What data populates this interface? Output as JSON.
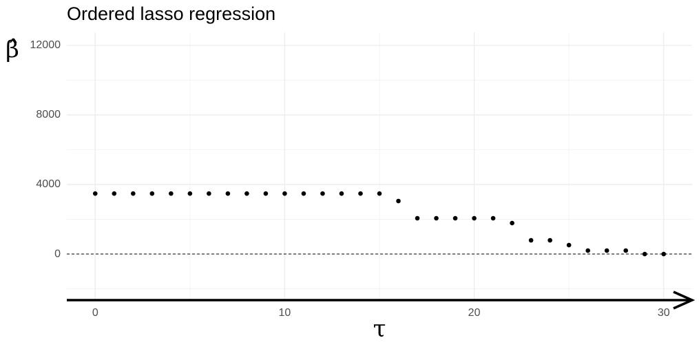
{
  "chart_data": {
    "type": "scatter",
    "title": "Ordered lasso regression",
    "x_label": "τ",
    "y_label": "β̂",
    "x": [
      0,
      1,
      2,
      3,
      4,
      5,
      6,
      7,
      8,
      9,
      10,
      11,
      12,
      13,
      14,
      15,
      16,
      17,
      18,
      19,
      20,
      21,
      22,
      23,
      24,
      25,
      26,
      27,
      28,
      29,
      30
    ],
    "values": [
      3480,
      3480,
      3480,
      3480,
      3480,
      3480,
      3480,
      3480,
      3480,
      3480,
      3480,
      3480,
      3480,
      3480,
      3480,
      3480,
      3050,
      2060,
      2060,
      2060,
      2060,
      2060,
      1780,
      790,
      790,
      515,
      200,
      200,
      200,
      0,
      0
    ],
    "color": "#000000",
    "xlim": [
      -1.5,
      31.5
    ],
    "xticks": [
      0,
      10,
      20,
      30
    ],
    "x_minor_grid": [
      5,
      15,
      25
    ],
    "ylim": [
      -2650,
      12750
    ],
    "yticks": [
      0,
      4000,
      8000,
      12000
    ],
    "y_minor_grid": [
      -2000,
      2000,
      6000,
      10000
    ],
    "hline": 0,
    "grid": true
  }
}
